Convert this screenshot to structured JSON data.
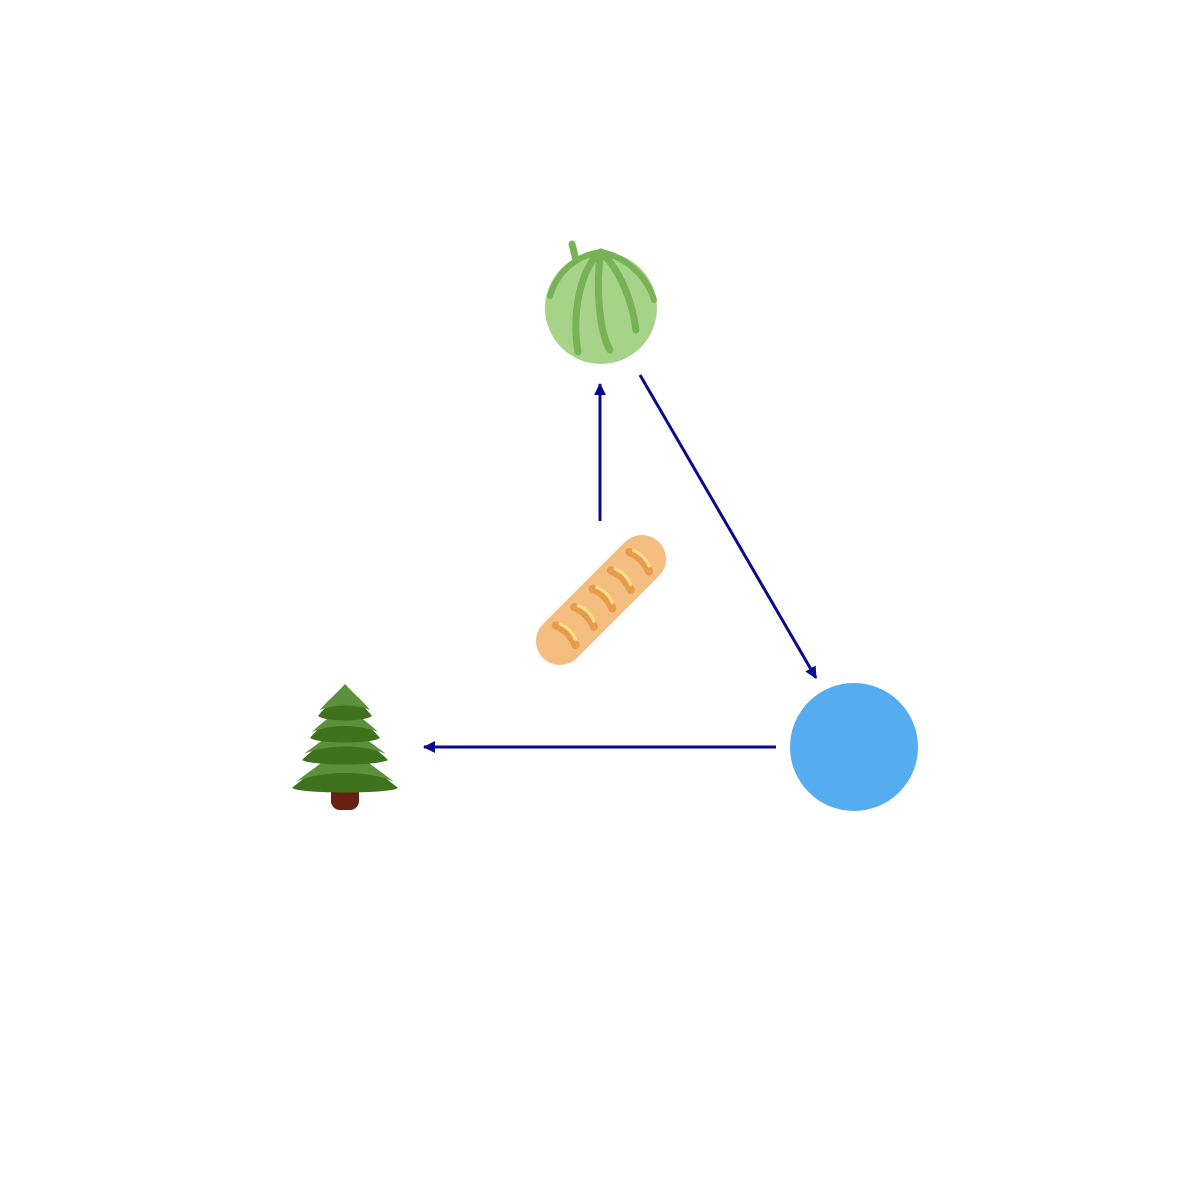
{
  "diagram": {
    "nodes": [
      {
        "id": "melon",
        "icon": "melon-icon"
      },
      {
        "id": "blue-circle",
        "icon": "blue-circle-icon",
        "color": "#55acee"
      },
      {
        "id": "tree",
        "icon": "evergreen-tree-icon"
      },
      {
        "id": "bread",
        "icon": "baguette-bread-icon"
      }
    ],
    "edges": [
      {
        "from": "bread",
        "to": "melon"
      },
      {
        "from": "melon",
        "to": "blue-circle"
      },
      {
        "from": "blue-circle",
        "to": "tree"
      }
    ],
    "colors": {
      "arrow": "#0a0a8c",
      "melon_light": "#a6d388",
      "melon_dark": "#77b255",
      "tree_light": "#5c913b",
      "tree_dark": "#3e721d",
      "trunk": "#662113",
      "bread": "#f4be80",
      "bread_score": "#e89b4a",
      "bread_highlight": "#ffe08a",
      "circle": "#55acee"
    }
  }
}
